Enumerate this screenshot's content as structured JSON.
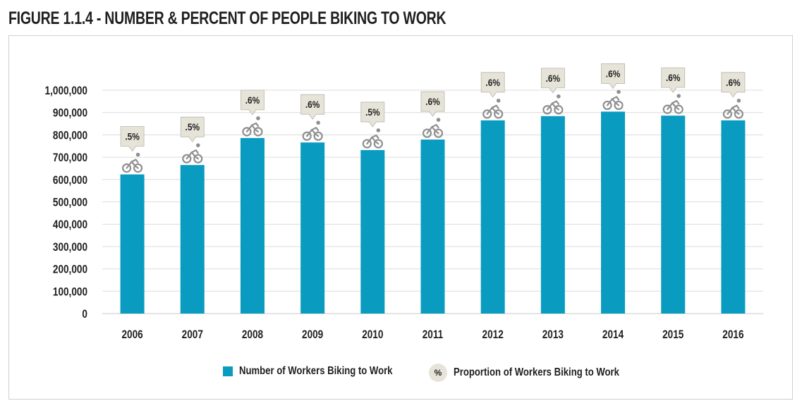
{
  "title": "FIGURE 1.1.4 - NUMBER & PERCENT OF PEOPLE BIKING TO WORK",
  "colors": {
    "bar": "#0a9bc1",
    "badge": "#e6e4d8",
    "icon": "#8f8f8f",
    "grid": "#dcdcdc"
  },
  "legend": {
    "bars_label": "Number of Workers Biking to Work",
    "badge_symbol": "%",
    "badge_label": "Proportion of Workers Biking to Work"
  },
  "chart_data": {
    "type": "bar",
    "categories": [
      "2006",
      "2007",
      "2008",
      "2009",
      "2010",
      "2011",
      "2012",
      "2013",
      "2014",
      "2015",
      "2016"
    ],
    "series": [
      {
        "name": "Number of Workers Biking to Work",
        "values": [
          623000,
          665000,
          786000,
          766000,
          732000,
          779000,
          865000,
          884000,
          904000,
          886000,
          865000
        ]
      },
      {
        "name": "Proportion of Workers Biking to Work",
        "labels": [
          ".5%",
          ".5%",
          ".6%",
          ".6%",
          ".5%",
          ".6%",
          ".6%",
          ".6%",
          ".6%",
          ".6%",
          ".6%"
        ]
      }
    ],
    "ylim": [
      0,
      1000000
    ],
    "yticks": [
      0,
      100000,
      200000,
      300000,
      400000,
      500000,
      600000,
      700000,
      800000,
      900000,
      1000000
    ],
    "ytick_labels": [
      "0",
      "100,000",
      "200,000",
      "300,000",
      "400,000",
      "500,000",
      "600,000",
      "700,000",
      "800,000",
      "900,000",
      "1,000,000"
    ],
    "grid": true,
    "legend_position": "bottom"
  }
}
